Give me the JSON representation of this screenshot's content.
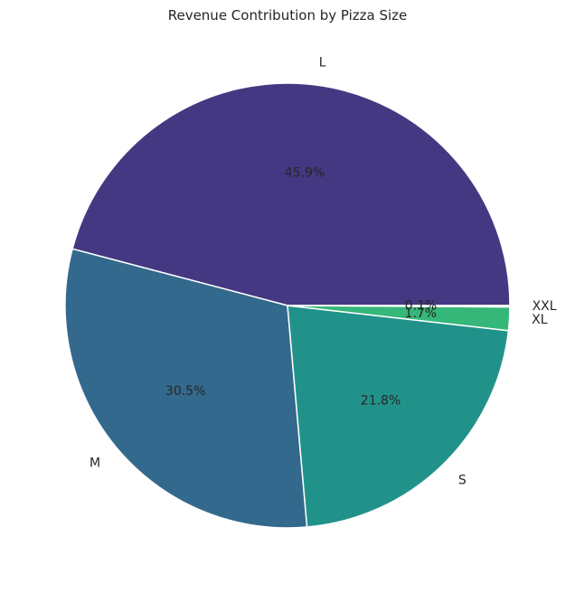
{
  "chart_data": {
    "type": "pie",
    "title": "Revenue Contribution by Pizza Size",
    "slices": [
      {
        "label": "L",
        "value": 45.9,
        "pct_label": "45.9%",
        "color": "#453882"
      },
      {
        "label": "M",
        "value": 30.5,
        "pct_label": "30.5%",
        "color": "#33698c"
      },
      {
        "label": "S",
        "value": 21.8,
        "pct_label": "21.8%",
        "color": "#21928a"
      },
      {
        "label": "XL",
        "value": 1.7,
        "pct_label": "1.7%",
        "color": "#35b779"
      },
      {
        "label": "XXL",
        "value": 0.1,
        "pct_label": "0.1%",
        "color": "#8fd744"
      }
    ],
    "start_angle_deg": 0,
    "direction": "counterclockwise",
    "edge_color": "#ffffff"
  }
}
